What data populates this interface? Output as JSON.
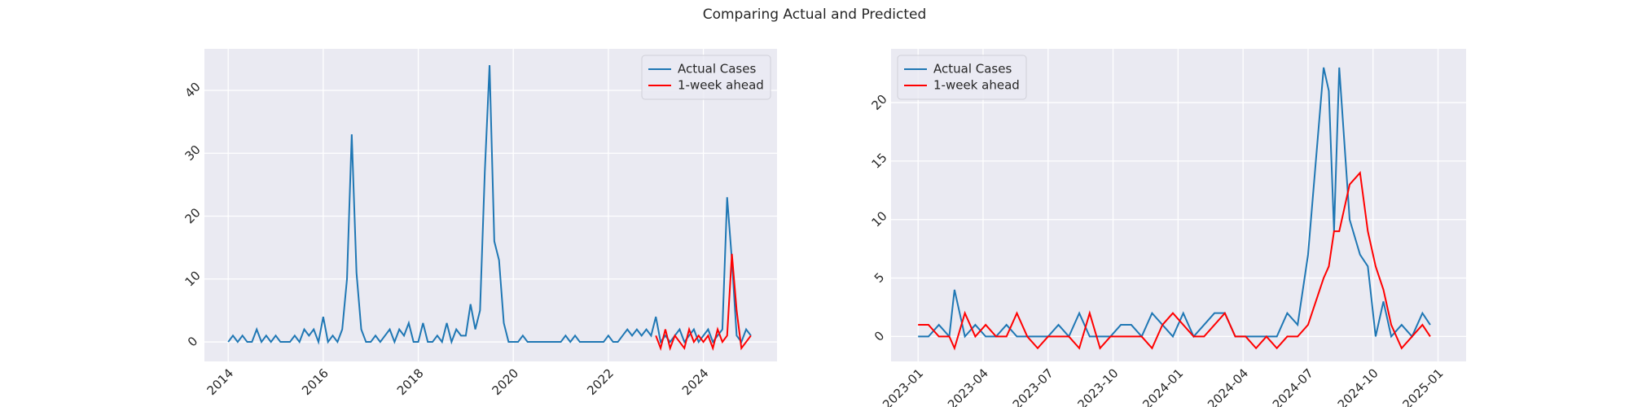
{
  "title": "Comparing Actual and Predicted",
  "chart_data": [
    {
      "type": "line",
      "x": [
        2014.0,
        2014.1,
        2014.2,
        2014.3,
        2014.4,
        2014.5,
        2014.6,
        2014.7,
        2014.8,
        2014.9,
        2015.0,
        2015.1,
        2015.2,
        2015.3,
        2015.4,
        2015.5,
        2015.6,
        2015.7,
        2015.8,
        2015.9,
        2016.0,
        2016.1,
        2016.2,
        2016.3,
        2016.4,
        2016.5,
        2016.6,
        2016.7,
        2016.8,
        2016.9,
        2017.0,
        2017.1,
        2017.2,
        2017.3,
        2017.4,
        2017.5,
        2017.6,
        2017.7,
        2017.8,
        2017.9,
        2018.0,
        2018.1,
        2018.2,
        2018.3,
        2018.4,
        2018.5,
        2018.6,
        2018.7,
        2018.8,
        2018.9,
        2019.0,
        2019.1,
        2019.2,
        2019.3,
        2019.4,
        2019.5,
        2019.6,
        2019.7,
        2019.8,
        2019.9,
        2020.0,
        2020.1,
        2020.2,
        2020.3,
        2020.4,
        2020.5,
        2020.6,
        2020.7,
        2020.8,
        2020.9,
        2021.0,
        2021.1,
        2021.2,
        2021.3,
        2021.4,
        2021.5,
        2021.6,
        2021.7,
        2021.8,
        2021.9,
        2022.0,
        2022.1,
        2022.2,
        2022.3,
        2022.4,
        2022.5,
        2022.6,
        2022.7,
        2022.8,
        2022.9,
        2023.0,
        2023.1,
        2023.2,
        2023.3,
        2023.4,
        2023.5,
        2023.6,
        2023.7,
        2023.8,
        2023.9,
        2024.0,
        2024.1,
        2024.2,
        2024.3,
        2024.4,
        2024.5,
        2024.6,
        2024.7,
        2024.8,
        2024.9,
        2025.0
      ],
      "series": [
        {
          "name": "Actual Cases",
          "color": "#1f77b4",
          "values": [
            0,
            1,
            0,
            1,
            0,
            0,
            2,
            0,
            1,
            0,
            1,
            0,
            0,
            0,
            1,
            0,
            2,
            1,
            2,
            0,
            4,
            0,
            1,
            0,
            2,
            10,
            33,
            11,
            2,
            0,
            0,
            1,
            0,
            1,
            2,
            0,
            2,
            1,
            3,
            0,
            0,
            3,
            0,
            0,
            1,
            0,
            3,
            0,
            2,
            1,
            1,
            6,
            2,
            5,
            27,
            44,
            16,
            13,
            3,
            0,
            0,
            0,
            1,
            0,
            0,
            0,
            0,
            0,
            0,
            0,
            0,
            1,
            0,
            1,
            0,
            0,
            0,
            0,
            0,
            0,
            1,
            0,
            0,
            1,
            2,
            1,
            2,
            1,
            2,
            1,
            4,
            0,
            1,
            0,
            1,
            2,
            0,
            1,
            2,
            0,
            1,
            2,
            0,
            1,
            2,
            23,
            13,
            1,
            0,
            2,
            1
          ]
        },
        {
          "name": "1-week ahead",
          "color": "#ff0000",
          "values": [
            null,
            null,
            null,
            null,
            null,
            null,
            null,
            null,
            null,
            null,
            null,
            null,
            null,
            null,
            null,
            null,
            null,
            null,
            null,
            null,
            null,
            null,
            null,
            null,
            null,
            null,
            null,
            null,
            null,
            null,
            null,
            null,
            null,
            null,
            null,
            null,
            null,
            null,
            null,
            null,
            null,
            null,
            null,
            null,
            null,
            null,
            null,
            null,
            null,
            null,
            null,
            null,
            null,
            null,
            null,
            null,
            null,
            null,
            null,
            null,
            null,
            null,
            null,
            null,
            null,
            null,
            null,
            null,
            null,
            null,
            null,
            null,
            null,
            null,
            null,
            null,
            null,
            null,
            null,
            null,
            null,
            null,
            null,
            null,
            null,
            null,
            null,
            null,
            null,
            null,
            1,
            -1,
            2,
            -1,
            1,
            0,
            -1,
            2,
            0,
            1,
            0,
            1,
            -1,
            2,
            0,
            1,
            14,
            5,
            -1,
            0,
            1
          ]
        }
      ],
      "xlim": [
        2013.5,
        2025.55
      ],
      "xticks": [
        2014,
        2016,
        2018,
        2020,
        2022,
        2024
      ],
      "ylim": [
        -3.1,
        46.6
      ],
      "yticks": [
        0,
        10,
        20,
        30,
        40
      ],
      "grid": true,
      "legend": "upper right"
    },
    {
      "type": "line",
      "x": [
        2023.0,
        2023.04,
        2023.08,
        2023.12,
        2023.14,
        2023.18,
        2023.22,
        2023.26,
        2023.3,
        2023.34,
        2023.38,
        2023.42,
        2023.46,
        2023.5,
        2023.54,
        2023.58,
        2023.62,
        2023.66,
        2023.7,
        2023.74,
        2023.78,
        2023.82,
        2023.86,
        2023.9,
        2023.94,
        2023.98,
        2024.02,
        2024.06,
        2024.1,
        2024.14,
        2024.18,
        2024.22,
        2024.26,
        2024.3,
        2024.34,
        2024.38,
        2024.42,
        2024.46,
        2024.5,
        2024.56,
        2024.58,
        2024.6,
        2024.62,
        2024.66,
        2024.7,
        2024.73,
        2024.76,
        2024.79,
        2024.82,
        2024.86,
        2024.9,
        2024.94,
        2024.97
      ],
      "series": [
        {
          "name": "Actual Cases",
          "color": "#1f77b4",
          "values": [
            0,
            0,
            1,
            0,
            4,
            0,
            1,
            0,
            0,
            1,
            0,
            0,
            0,
            0,
            1,
            0,
            2,
            0,
            0,
            0,
            1,
            1,
            0,
            2,
            1,
            0,
            2,
            0,
            1,
            2,
            2,
            0,
            0,
            0,
            0,
            0,
            2,
            1,
            7,
            23,
            21,
            9,
            23,
            10,
            7,
            6,
            0,
            3,
            0,
            1,
            0,
            2,
            1
          ]
        },
        {
          "name": "1-week ahead",
          "color": "#ff0000",
          "values": [
            1,
            1,
            0,
            0,
            -1,
            2,
            0,
            1,
            0,
            0,
            2,
            0,
            -1,
            0,
            0,
            0,
            -1,
            2,
            -1,
            0,
            0,
            0,
            0,
            -1,
            1,
            2,
            1,
            0,
            0,
            1,
            2,
            0,
            0,
            -1,
            0,
            -1,
            0,
            0,
            1,
            5,
            6,
            9,
            9,
            13,
            14,
            9,
            6,
            4,
            1,
            -1,
            0,
            1,
            0
          ]
        }
      ],
      "xlim": [
        2022.896,
        2025.108
      ],
      "xticks": [
        {
          "value": 2023.0,
          "label": "2023-01"
        },
        {
          "value": 2023.25,
          "label": "2023-04"
        },
        {
          "value": 2023.5,
          "label": "2023-07"
        },
        {
          "value": 2023.75,
          "label": "2023-10"
        },
        {
          "value": 2024.0,
          "label": "2024-01"
        },
        {
          "value": 2024.25,
          "label": "2024-04"
        },
        {
          "value": 2024.5,
          "label": "2024-07"
        },
        {
          "value": 2024.75,
          "label": "2024-10"
        },
        {
          "value": 2025.0,
          "label": "2025-01"
        }
      ],
      "ylim": [
        -2.13,
        24.6
      ],
      "yticks": [
        0,
        5,
        10,
        15,
        20
      ],
      "grid": true,
      "legend": "upper left"
    }
  ]
}
